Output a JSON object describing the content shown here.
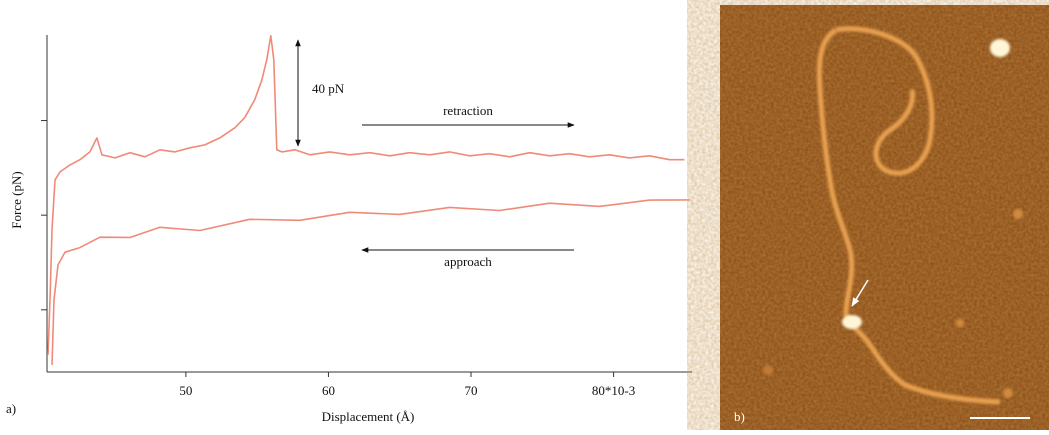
{
  "chart_data": {
    "type": "line",
    "panel_label": "a)",
    "x_label": "Displacement (Å)",
    "y_label": "Force (pN)",
    "xlim": [
      40.26,
      85.5
    ],
    "ylim": [
      0,
      130
    ],
    "xticks": [
      50,
      60,
      70,
      {
        "value": 80,
        "label": "80*10-3"
      }
    ],
    "yticks": [
      24,
      60.5,
      97
    ],
    "ytick_labels": false,
    "grid": false,
    "annotations": {
      "force_scale": "40 pN",
      "retraction": "retraction",
      "approach": "approach"
    },
    "series": [
      {
        "name": "retraction",
        "color": "#f08a78",
        "x": [
          40.33,
          40.47,
          40.61,
          40.82,
          41.17,
          41.87,
          42.57,
          43.27,
          43.76,
          44.11,
          45.03,
          46.08,
          47.13,
          48.18,
          49.23,
          50.28,
          51.33,
          52.38,
          53.43,
          54.13,
          54.83,
          55.33,
          55.68,
          55.96,
          56.17,
          56.38,
          56.73,
          57.64,
          58.69,
          60.09,
          61.49,
          62.9,
          64.3,
          65.7,
          67.1,
          68.5,
          69.9,
          71.3,
          72.71,
          74.11,
          75.51,
          76.91,
          78.31,
          79.71,
          81.11,
          82.52,
          83.92,
          84.97
        ],
        "values": [
          6.6,
          27.8,
          54.8,
          74.1,
          77.2,
          79.9,
          81.9,
          84.9,
          90.3,
          83.8,
          82.6,
          84.6,
          83.0,
          85.7,
          84.9,
          86.5,
          87.6,
          90.3,
          94.2,
          98.1,
          105.0,
          112.7,
          120.5,
          129.7,
          120.5,
          85.7,
          84.9,
          85.7,
          83.8,
          84.9,
          83.8,
          84.6,
          83.4,
          84.6,
          83.8,
          84.9,
          83.4,
          84.2,
          83.0,
          84.6,
          83.4,
          84.2,
          83.0,
          83.8,
          82.6,
          83.4,
          81.9,
          81.9
        ]
      },
      {
        "name": "approach",
        "color": "#f08a78",
        "x": [
          40.61,
          40.75,
          41.03,
          41.52,
          42.57,
          43.97,
          46.08,
          48.18,
          50.98,
          54.48,
          57.99,
          61.49,
          64.99,
          68.5,
          72.0,
          75.51,
          79.01,
          82.52,
          85.32
        ],
        "values": [
          2.7,
          27.8,
          41.3,
          46.2,
          48.0,
          52.0,
          51.9,
          55.8,
          54.6,
          58.9,
          58.5,
          61.6,
          60.8,
          63.5,
          62.3,
          65.1,
          63.9,
          66.3,
          66.4
        ]
      }
    ]
  },
  "image_panel": {
    "panel_label": "b)"
  }
}
